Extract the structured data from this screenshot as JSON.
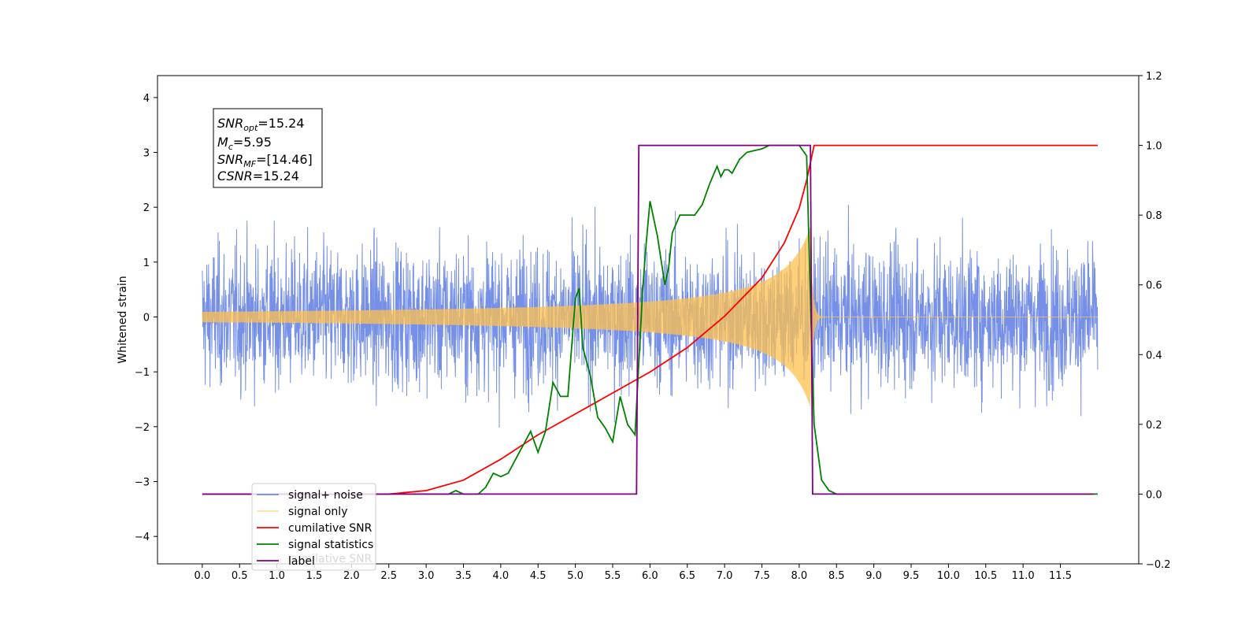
{
  "chart_data": {
    "type": "line",
    "ylabel": "Whitened strain",
    "xlim": [
      -0.6,
      12.55
    ],
    "ylim": [
      -4.5,
      4.4
    ],
    "y2lim": [
      -0.2,
      1.2
    ],
    "x_ticks": [
      "0.0",
      "0.5",
      "1.0",
      "1.5",
      "2.0",
      "2.5",
      "3.0",
      "3.5",
      "4.0",
      "4.5",
      "5.0",
      "5.5",
      "6.0",
      "6.5",
      "7.0",
      "7.5",
      "8.0",
      "8.5",
      "9.0",
      "9.5",
      "10.0",
      "10.5",
      "11.0",
      "11.5"
    ],
    "y_ticks": [
      "4",
      "3",
      "2",
      "1",
      "0",
      "−1",
      "−2",
      "−3",
      "−4"
    ],
    "y2_ticks": [
      "1.2",
      "1.0",
      "0.8",
      "0.6",
      "0.4",
      "0.2",
      "0.0",
      "−0.2"
    ],
    "colors": {
      "noise": "#6f8ae6",
      "signal": "#ffc04d",
      "cumulative": "#ff0000",
      "statistics": "#008000",
      "label": "#800080"
    },
    "legend": {
      "placement": "lower-left",
      "entries": [
        "signal+ noise",
        "signal only",
        "cumilative SNR",
        "signal statistics",
        "label"
      ],
      "ghost_text": "cumilative SNR"
    },
    "annotation": {
      "snr_opt": {
        "base": "SNR",
        "sub": "opt",
        "value": "=15.24"
      },
      "mc": {
        "base": "M",
        "sub": "c",
        "value": "=5.95"
      },
      "snr_mf": {
        "base": "SNR",
        "sub": "MF",
        "value": "=[14.46]"
      },
      "csnr": {
        "base": "CSNR",
        "value": "=15.24"
      }
    },
    "series": [
      {
        "name": "signal+ noise",
        "axis": "left",
        "kind": "noise",
        "x_range": [
          0.0,
          12.0
        ],
        "envelope_max": 4.0,
        "envelope_min": -4.1
      },
      {
        "name": "signal only",
        "axis": "left",
        "kind": "chirp",
        "x_range": [
          0.0,
          12.0
        ],
        "start": 0.0,
        "peak_time": 8.15,
        "peak_amplitude": 1.65
      },
      {
        "name": "cumilative SNR",
        "axis": "right",
        "x": [
          0.0,
          2.5,
          3.0,
          3.5,
          4.0,
          4.5,
          5.0,
          5.5,
          6.0,
          6.5,
          7.0,
          7.5,
          7.8,
          8.0,
          8.1,
          8.2,
          12.0
        ],
        "values": [
          0.0,
          0.0,
          0.01,
          0.04,
          0.1,
          0.17,
          0.23,
          0.29,
          0.35,
          0.42,
          0.51,
          0.62,
          0.72,
          0.82,
          0.9,
          1.0,
          1.0
        ]
      },
      {
        "name": "signal statistics",
        "axis": "right",
        "x": [
          0.0,
          3.3,
          3.4,
          3.5,
          3.7,
          3.8,
          3.9,
          4.0,
          4.1,
          4.2,
          4.3,
          4.4,
          4.5,
          4.6,
          4.7,
          4.8,
          4.9,
          5.0,
          5.05,
          5.1,
          5.2,
          5.3,
          5.4,
          5.5,
          5.6,
          5.7,
          5.8,
          5.9,
          5.95,
          6.0,
          6.05,
          6.1,
          6.2,
          6.25,
          6.3,
          6.4,
          6.5,
          6.6,
          6.7,
          6.8,
          6.9,
          6.95,
          7.0,
          7.05,
          7.1,
          7.2,
          7.3,
          7.5,
          7.6,
          7.8,
          8.0,
          8.1,
          8.15,
          8.2,
          8.3,
          8.4,
          8.5,
          12.0
        ],
        "values": [
          0.0,
          0.0,
          0.01,
          0.0,
          0.0,
          0.02,
          0.06,
          0.05,
          0.06,
          0.1,
          0.14,
          0.18,
          0.12,
          0.18,
          0.32,
          0.28,
          0.28,
          0.56,
          0.59,
          0.42,
          0.34,
          0.22,
          0.19,
          0.15,
          0.28,
          0.2,
          0.17,
          0.58,
          0.72,
          0.84,
          0.79,
          0.74,
          0.6,
          0.65,
          0.75,
          0.8,
          0.8,
          0.8,
          0.83,
          0.89,
          0.94,
          0.91,
          0.93,
          0.93,
          0.92,
          0.96,
          0.98,
          0.99,
          1.0,
          1.0,
          1.0,
          0.97,
          0.56,
          0.2,
          0.04,
          0.01,
          0.0,
          0.0
        ]
      },
      {
        "name": "label",
        "axis": "right",
        "x": [
          0.0,
          5.82,
          5.85,
          8.15,
          8.18,
          11.95
        ],
        "values": [
          0.0,
          0.0,
          1.0,
          1.0,
          0.0,
          0.0
        ]
      }
    ]
  }
}
